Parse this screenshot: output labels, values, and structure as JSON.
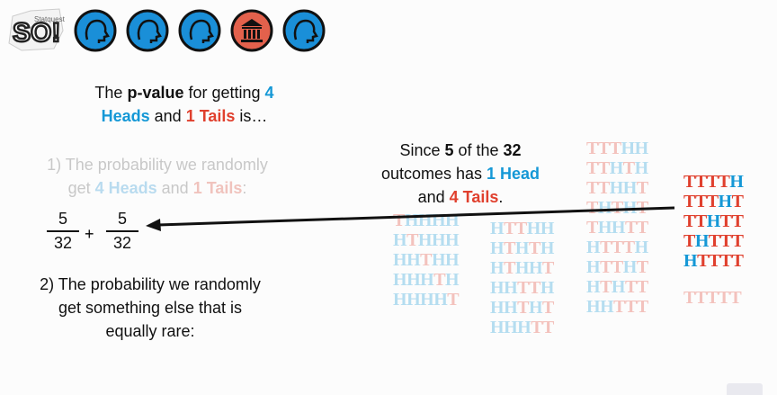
{
  "logo": {
    "text": "Statquest SO!"
  },
  "header_icons": [
    {
      "name": "head-icon",
      "color": "#1a8fd8"
    },
    {
      "name": "head-icon",
      "color": "#1a8fd8"
    },
    {
      "name": "head-icon",
      "color": "#1a8fd8"
    },
    {
      "name": "bank-icon",
      "color": "#e3614c"
    },
    {
      "name": "head-icon",
      "color": "#1a8fd8"
    }
  ],
  "title": {
    "l1": "The ",
    "pvalue": "p-value",
    "l1b": " for getting ",
    "four": "4",
    "heads": "Heads",
    "and": " and ",
    "one_tails": "1 Tails",
    "is": " is…"
  },
  "item1": {
    "a": "1) The probability we randomly",
    "b": "get ",
    "heads": "4 Heads",
    "and": " and ",
    "tails": "1 Tails",
    "colon": ":"
  },
  "fraction": {
    "num1": "5",
    "den1": "32",
    "plus": "+",
    "num2": "5",
    "den2": "32"
  },
  "item2": {
    "a": "2) The probability we randomly",
    "b": "get something else that is",
    "c": "equally rare:"
  },
  "callout": {
    "a": "Since ",
    "five": "5",
    "b": " of the ",
    "tt": "32",
    "c": "outcomes has ",
    "head": "1 Head",
    "d": "and ",
    "tails": "4 Tails",
    "e": "."
  },
  "colors": {
    "blue": "#1598d6",
    "red": "#e0402e"
  },
  "outcome_columns": [
    [
      "THHHH",
      "HTHHH",
      "HHTHH",
      "HHHTH",
      "HHHHT"
    ],
    [
      "HTTHH",
      "HTHTH",
      "HTHHT",
      "HHTTH",
      "HHTHT",
      "HHHTT"
    ],
    [
      "TTTHH",
      "TTHTH",
      "TTHHT",
      "THTHT",
      "THHTT",
      "HTTTH",
      "HTTHT",
      "HTHTT",
      "HHTTT"
    ],
    [
      "TTTTH",
      "TTTHT",
      "TTHTT",
      "THTTT",
      "HTTTT"
    ],
    [
      "TTTTT"
    ]
  ]
}
